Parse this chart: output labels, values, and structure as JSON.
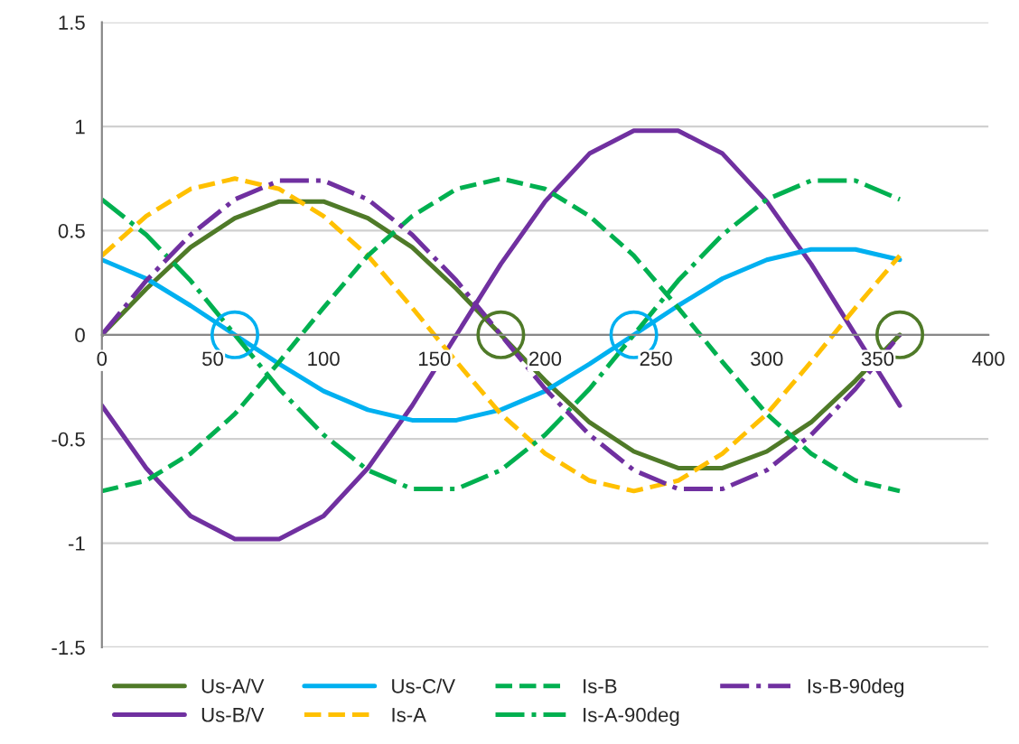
{
  "chart_data": {
    "type": "line",
    "x": [
      0,
      20,
      40,
      60,
      80,
      100,
      120,
      140,
      160,
      180,
      200,
      220,
      240,
      260,
      280,
      300,
      320,
      340,
      360
    ],
    "xlim": [
      0,
      400
    ],
    "xticks": [
      0,
      50,
      100,
      150,
      200,
      250,
      300,
      350,
      400
    ],
    "ylim": [
      -1.5,
      1.5
    ],
    "yticks": [
      -1.5,
      -1,
      -0.5,
      0,
      0.5,
      1,
      1.5
    ],
    "grid": "y",
    "legend": "bottom",
    "marker": "none",
    "series": [
      {
        "name": "Us-A/V",
        "color": "#4f7a28",
        "line_style": "solid",
        "values": [
          0,
          0.22,
          0.42,
          0.56,
          0.64,
          0.64,
          0.56,
          0.42,
          0.22,
          0,
          -0.22,
          -0.42,
          -0.56,
          -0.64,
          -0.64,
          -0.56,
          -0.42,
          -0.22,
          0
        ]
      },
      {
        "name": "Us-B/V",
        "color": "#7030a0",
        "line_style": "solid",
        "values": [
          -0.34,
          -0.64,
          -0.87,
          -0.98,
          -0.98,
          -0.87,
          -0.64,
          -0.34,
          0,
          0.34,
          0.64,
          0.87,
          0.98,
          0.98,
          0.87,
          0.64,
          0.34,
          0,
          -0.34
        ]
      },
      {
        "name": "Us-C/V",
        "color": "#00b0f0",
        "line_style": "solid",
        "values": [
          0.36,
          0.27,
          0.14,
          0,
          -0.14,
          -0.27,
          -0.36,
          -0.41,
          -0.41,
          -0.36,
          -0.27,
          -0.14,
          0,
          0.14,
          0.27,
          0.36,
          0.41,
          0.41,
          0.36
        ]
      },
      {
        "name": "Is-A",
        "color": "#ffc000",
        "line_style": "dashed",
        "values": [
          0.38,
          0.57,
          0.7,
          0.75,
          0.7,
          0.57,
          0.38,
          0.13,
          -0.13,
          -0.38,
          -0.57,
          -0.7,
          -0.75,
          -0.7,
          -0.57,
          -0.38,
          -0.13,
          0.13,
          0.38
        ]
      },
      {
        "name": "Is-B",
        "color": "#00b050",
        "line_style": "dashed",
        "values": [
          -0.75,
          -0.7,
          -0.57,
          -0.38,
          -0.13,
          0.13,
          0.38,
          0.57,
          0.7,
          0.75,
          0.7,
          0.57,
          0.38,
          0.13,
          -0.13,
          -0.38,
          -0.57,
          -0.7,
          -0.75
        ]
      },
      {
        "name": "Is-A-90deg",
        "color": "#00b050",
        "line_style": "dashdot",
        "values": [
          0.65,
          0.48,
          0.26,
          0,
          -0.26,
          -0.48,
          -0.65,
          -0.74,
          -0.74,
          -0.65,
          -0.48,
          -0.26,
          0,
          0.26,
          0.48,
          0.65,
          0.74,
          0.74,
          0.65
        ]
      },
      {
        "name": "Is-B-90deg",
        "color": "#7030a0",
        "line_style": "dashdot",
        "values": [
          0,
          0.26,
          0.48,
          0.65,
          0.74,
          0.74,
          0.65,
          0.48,
          0.26,
          0,
          -0.26,
          -0.48,
          -0.65,
          -0.74,
          -0.74,
          -0.65,
          -0.48,
          -0.26,
          0
        ]
      },
      {
        "type": "scatter",
        "marker": "circle",
        "color": "#00b0f0",
        "x": [
          60,
          240
        ],
        "values": [
          0,
          0
        ]
      },
      {
        "type": "scatter",
        "marker": "circle",
        "color": "#4f7a28",
        "x": [
          180,
          360
        ],
        "values": [
          0,
          0
        ]
      }
    ]
  }
}
